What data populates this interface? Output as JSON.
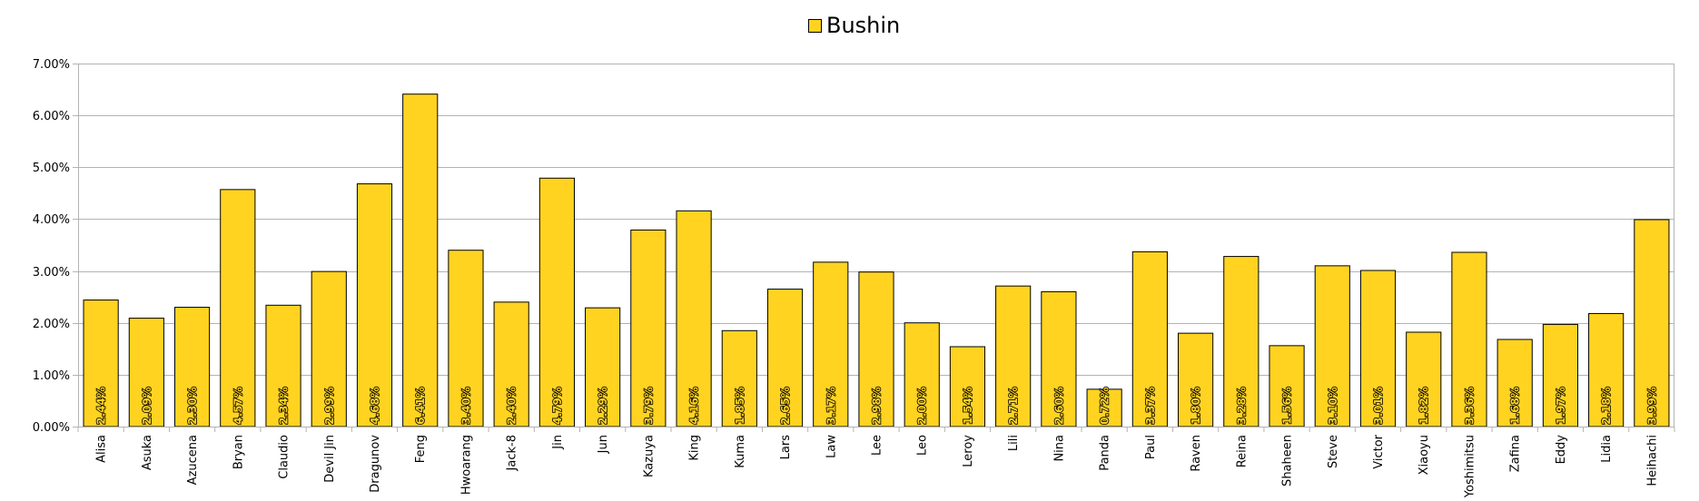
{
  "chart_data": {
    "type": "bar",
    "title": "",
    "xlabel": "",
    "ylabel": "",
    "ylim": [
      0,
      0.07
    ],
    "yticks": [
      0,
      0.01,
      0.02,
      0.03,
      0.04,
      0.05,
      0.06,
      0.07
    ],
    "ytick_labels": [
      "0.00%",
      "1.00%",
      "2.00%",
      "3.00%",
      "4.00%",
      "5.00%",
      "6.00%",
      "7.00%"
    ],
    "grid": true,
    "legend": "top-center",
    "bar_color": "#ffd320",
    "categories": [
      "Alisa",
      "Asuka",
      "Azucena",
      "Bryan",
      "Claudio",
      "Devil Jin",
      "Dragunov",
      "Feng",
      "Hwoarang",
      "Jack-8",
      "Jin",
      "Jun",
      "Kazuya",
      "King",
      "Kuma",
      "Lars",
      "Law",
      "Lee",
      "Leo",
      "Leroy",
      "Lili",
      "Nina",
      "Panda",
      "Paul",
      "Raven",
      "Reina",
      "Shaheen",
      "Steve",
      "Victor",
      "Xiaoyu",
      "Yoshimitsu",
      "Zafina",
      "Eddy",
      "Lidia",
      "Heihachi"
    ],
    "series": [
      {
        "name": "Bushin",
        "values": [
          0.0244,
          0.0209,
          0.023,
          0.0457,
          0.0234,
          0.0299,
          0.0468,
          0.0641,
          0.034,
          0.024,
          0.0479,
          0.0229,
          0.0379,
          0.0416,
          0.0185,
          0.0265,
          0.0317,
          0.0298,
          0.02,
          0.0154,
          0.0271,
          0.026,
          0.0072,
          0.0337,
          0.018,
          0.0328,
          0.0156,
          0.031,
          0.0301,
          0.0182,
          0.0336,
          0.0168,
          0.0197,
          0.0218,
          0.0399
        ],
        "labels": [
          "2.44%",
          "2.09%",
          "2.30%",
          "4.57%",
          "2.34%",
          "2.99%",
          "4.68%",
          "6.41%",
          "3.40%",
          "2.40%",
          "4.79%",
          "2.29%",
          "3.79%",
          "4.16%",
          "1.85%",
          "2.65%",
          "3.17%",
          "2.98%",
          "2.00%",
          "1.54%",
          "2.71%",
          "2.60%",
          "0.72%",
          "3.37%",
          "1.80%",
          "3.28%",
          "1.56%",
          "3.10%",
          "3.01%",
          "1.82%",
          "3.36%",
          "1.68%",
          "1.97%",
          "2.18%",
          "3.99%"
        ]
      }
    ]
  }
}
